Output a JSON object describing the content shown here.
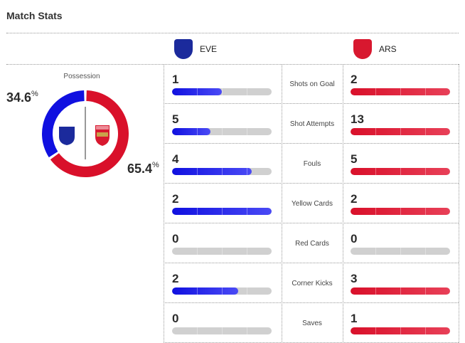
{
  "title": "Match Stats",
  "home": {
    "abbr": "EVE",
    "crest": "Everton",
    "color": "#1010e0"
  },
  "away": {
    "abbr": "ARS",
    "crest": "Arsenal",
    "color": "#d9102a"
  },
  "possession": {
    "label": "Possession",
    "home_value": "34.6",
    "away_value": "65.4",
    "unit": "%",
    "home_fraction": 0.346
  },
  "stats": [
    {
      "label": "Shots on Goal",
      "home": "1",
      "away": "2",
      "home_fill": 0.5,
      "away_fill": 1
    },
    {
      "label": "Shot Attempts",
      "home": "5",
      "away": "13",
      "home_fill": 0.385,
      "away_fill": 1
    },
    {
      "label": "Fouls",
      "home": "4",
      "away": "5",
      "home_fill": 0.8,
      "away_fill": 1
    },
    {
      "label": "Yellow Cards",
      "home": "2",
      "away": "2",
      "home_fill": 1,
      "away_fill": 1
    },
    {
      "label": "Red Cards",
      "home": "0",
      "away": "0",
      "home_fill": 0,
      "away_fill": 0
    },
    {
      "label": "Corner Kicks",
      "home": "2",
      "away": "3",
      "home_fill": 0.667,
      "away_fill": 1
    },
    {
      "label": "Saves",
      "home": "0",
      "away": "1",
      "home_fill": 0,
      "away_fill": 1
    }
  ]
}
